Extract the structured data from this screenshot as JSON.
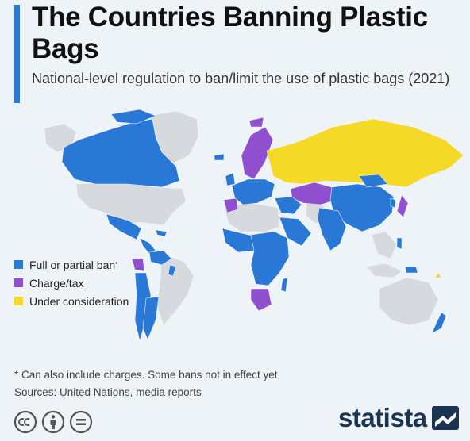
{
  "header": {
    "title": "The Countries Banning Plastic Bags",
    "subtitle": "National-level regulation to ban/limit the use of plastic bags (2021)"
  },
  "colors": {
    "accent": "#2a78d6",
    "ban": "#2a78d6",
    "charge": "#8f4fcf",
    "consideration": "#f5d927",
    "no_data": "#d6d9dd",
    "background": "#eef3f8"
  },
  "legend": {
    "items": [
      {
        "label": "Full or partial ban",
        "marker": "*",
        "color": "#2a78d6"
      },
      {
        "label": "Charge/tax",
        "marker": "",
        "color": "#8f4fcf"
      },
      {
        "label": "Under consideration",
        "marker": "",
        "color": "#f5d927"
      }
    ]
  },
  "footnote": {
    "note": "* Can also include charges. Some bans not in effect yet",
    "sources": "Sources: United Nations, media reports"
  },
  "license_icons": [
    "creative-commons-icon",
    "attribution-icon",
    "no-derivatives-icon"
  ],
  "brand": {
    "name": "statista",
    "icon": "statista-logo-icon"
  }
}
